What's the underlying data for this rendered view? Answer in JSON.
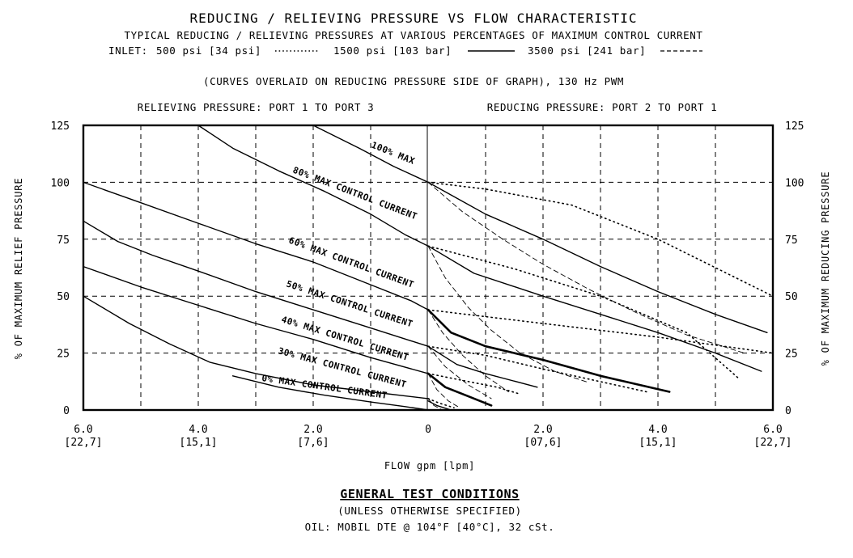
{
  "chart_data": {
    "type": "line",
    "title": "REDUCING / RELIEVING PRESSURE VS FLOW CHARACTERISTIC",
    "subtitle": "TYPICAL REDUCING / RELIEVING PRESSURES AT VARIOUS PERCENTAGES OF MAXIMUM CONTROL CURRENT",
    "inlet_legend": {
      "prefix": "INLET:",
      "entries": [
        {
          "label": "500 psi [34 psi]",
          "style": "dotted"
        },
        {
          "label": "1500 psi [103 bar]",
          "style": "solid"
        },
        {
          "label": "3500 psi [241 bar]",
          "style": "dashed"
        }
      ]
    },
    "note": "(CURVES OVERLAID ON REDUCING PRESSURE SIDE OF GRAPH), 130 Hz PWM",
    "left_region_label": "RELIEVING PRESSURE: PORT 1 TO PORT 3",
    "right_region_label": "REDUCING PRESSURE: PORT 2 TO PORT 1",
    "xlabel": "FLOW gpm [lpm]",
    "ylabel_left": "% OF MAXIMUM RELIEF PRESSURE",
    "ylabel_right": "% OF MAXIMUM REDUCING PRESSURE",
    "xlim": [
      -6,
      6
    ],
    "ylim": [
      0,
      125
    ],
    "grid": true,
    "x_ticks": [
      {
        "x": -6,
        "gpm": "6.0",
        "lpm": "[22,7]"
      },
      {
        "x": -4,
        "gpm": "4.0",
        "lpm": "[15,1]"
      },
      {
        "x": -2,
        "gpm": "2.0",
        "lpm": "[7,6]"
      },
      {
        "x": 0,
        "gpm": "0",
        "lpm": ""
      },
      {
        "x": 2,
        "gpm": "2.0",
        "lpm": "[07,6]"
      },
      {
        "x": 4,
        "gpm": "4.0",
        "lpm": "[15,1]"
      },
      {
        "x": 6,
        "gpm": "6.0",
        "lpm": "[22,7]"
      }
    ],
    "y_ticks": [
      {
        "y": 0,
        "label": "0"
      },
      {
        "y": 25,
        "label": "25"
      },
      {
        "y": 50,
        "label": "50"
      },
      {
        "y": 75,
        "label": "75"
      },
      {
        "y": 100,
        "label": "100"
      },
      {
        "y": 125,
        "label": "125"
      }
    ],
    "relieving_series": [
      {
        "name": "100% MAX",
        "x": [
          -2.0,
          -1.2,
          -0.6,
          0
        ],
        "y": [
          125,
          115,
          107,
          100
        ]
      },
      {
        "name": "80% MAX CONTROL CURRENT",
        "x": [
          -4.0,
          -3.4,
          -2.6,
          -1.8,
          -1.0,
          -0.4,
          0
        ],
        "y": [
          125,
          115,
          105,
          96,
          86,
          77,
          72
        ]
      },
      {
        "name": "60% MAX CONTROL CURRENT",
        "x": [
          -6.0,
          -5.0,
          -4.0,
          -3.0,
          -2.0,
          -1.0,
          -0.3,
          0
        ],
        "y": [
          100,
          91,
          82,
          73,
          65,
          55,
          48,
          44
        ]
      },
      {
        "name": "50% MAX CONTROL CURRENT",
        "x": [
          -6.0,
          -5.4,
          -4.8,
          -4.0,
          -3.0,
          -2.0,
          -1.0,
          0
        ],
        "y": [
          83,
          74,
          68,
          61,
          52,
          44,
          36,
          28
        ]
      },
      {
        "name": "40% MAX CONTROL CURRENT",
        "x": [
          -6.0,
          -5.0,
          -4.0,
          -3.0,
          -2.0,
          -1.0,
          0
        ],
        "y": [
          63,
          54,
          46,
          38,
          31,
          23,
          16
        ]
      },
      {
        "name": "30% MAX CONTROL CURRENT",
        "x": [
          -6.0,
          -5.2,
          -4.5,
          -3.8,
          -3.0,
          -2.0,
          -1.0,
          0
        ],
        "y": [
          50,
          38,
          29,
          21,
          16,
          11,
          8,
          5
        ]
      },
      {
        "name": "0% MAX CONTROL CURRENT",
        "x": [
          -3.4,
          -2.6,
          -1.8,
          -1.0,
          -0.4,
          0
        ],
        "y": [
          15,
          10,
          6.5,
          3.5,
          1.5,
          0
        ]
      }
    ],
    "reducing_series": [
      {
        "inlet": "1500 psi [103 bar]",
        "style": "solid",
        "x": [
          0,
          1.0,
          2.0,
          3.0,
          4.0,
          5.0,
          5.9
        ],
        "y": [
          100,
          86,
          75,
          63,
          52,
          42,
          34
        ]
      },
      {
        "inlet": "1500 psi [103 bar]",
        "style": "solid",
        "x": [
          0,
          0.8,
          2.0,
          3.0,
          4.0,
          5.0,
          5.8
        ],
        "y": [
          72,
          60,
          50,
          42,
          34,
          25,
          17
        ]
      },
      {
        "inlet": "1500 psi [103 bar]",
        "style": "solid-heavy",
        "x": [
          0,
          0.4,
          1.0,
          2.0,
          3.0,
          4.2
        ],
        "y": [
          44,
          34,
          28,
          22,
          15,
          8
        ]
      },
      {
        "inlet": "1500 psi [103 bar]",
        "style": "solid",
        "x": [
          0,
          0.5,
          1.0,
          1.9
        ],
        "y": [
          28,
          20,
          16,
          10
        ]
      },
      {
        "inlet": "1500 psi [103 bar]",
        "style": "solid-heavy",
        "x": [
          0,
          0.3,
          0.7,
          1.1
        ],
        "y": [
          16,
          10,
          6,
          2
        ]
      },
      {
        "inlet": "1500 psi [103 bar]",
        "style": "solid",
        "x": [
          0,
          0.15,
          0.4
        ],
        "y": [
          4,
          2,
          0
        ]
      },
      {
        "inlet": "500 psi [34 psi]",
        "style": "dotted",
        "x": [
          0,
          1.0,
          2.5,
          4.0,
          6.0
        ],
        "y": [
          100,
          97,
          90,
          75,
          50
        ]
      },
      {
        "inlet": "500 psi [34 psi]",
        "style": "dotted",
        "x": [
          0,
          1.5,
          3.0,
          4.5,
          5.4
        ],
        "y": [
          72,
          62,
          50,
          34,
          14
        ]
      },
      {
        "inlet": "500 psi [34 psi]",
        "style": "dotted",
        "x": [
          0,
          2.0,
          4.0,
          6.0
        ],
        "y": [
          44,
          38,
          32,
          25
        ]
      },
      {
        "inlet": "500 psi [34 psi]",
        "style": "dotted",
        "x": [
          0,
          1.0,
          2.0,
          3.8
        ],
        "y": [
          28,
          24,
          18,
          8
        ]
      },
      {
        "inlet": "500 psi [34 psi]",
        "style": "dotted",
        "x": [
          0,
          0.6,
          1.2,
          1.6
        ],
        "y": [
          16,
          13,
          10,
          7
        ]
      },
      {
        "inlet": "500 psi [34 psi]",
        "style": "dotted",
        "x": [
          0,
          0.2,
          0.45
        ],
        "y": [
          5,
          3,
          1
        ]
      },
      {
        "inlet": "3500 psi [241 bar]",
        "style": "dashed",
        "x": [
          0,
          0.6,
          1.3,
          2.0,
          2.8,
          3.6,
          4.5,
          5.5
        ],
        "y": [
          100,
          87,
          75,
          64,
          53,
          43,
          33,
          25
        ]
      },
      {
        "inlet": "3500 psi [241 bar]",
        "style": "dashed",
        "x": [
          0,
          0.3,
          0.7,
          1.1,
          1.6,
          2.2,
          2.8
        ],
        "y": [
          72,
          58,
          45,
          35,
          25,
          17,
          12
        ]
      },
      {
        "inlet": "3500 psi [241 bar]",
        "style": "dashed",
        "x": [
          0,
          0.25,
          0.6,
          1.0,
          1.4
        ],
        "y": [
          44,
          34,
          24,
          15,
          8
        ]
      },
      {
        "inlet": "3500 psi [241 bar]",
        "style": "dashed",
        "x": [
          0,
          0.3,
          0.7,
          1.1
        ],
        "y": [
          28,
          19,
          11,
          5
        ]
      },
      {
        "inlet": "3500 psi [241 bar]",
        "style": "dashed",
        "x": [
          0,
          0.15,
          0.35,
          0.55
        ],
        "y": [
          16,
          9,
          4,
          1
        ]
      },
      {
        "inlet": "3500 psi [241 bar]",
        "style": "dashed",
        "x": [
          0,
          0.1,
          0.25
        ],
        "y": [
          5,
          2,
          0
        ]
      }
    ]
  },
  "conditions": {
    "heading": "GENERAL TEST CONDITIONS",
    "line1": "(UNLESS OTHERWISE SPECIFIED)",
    "line2": "OIL: MOBIL DTE @ 104°F [40°C], 32 cSt."
  }
}
